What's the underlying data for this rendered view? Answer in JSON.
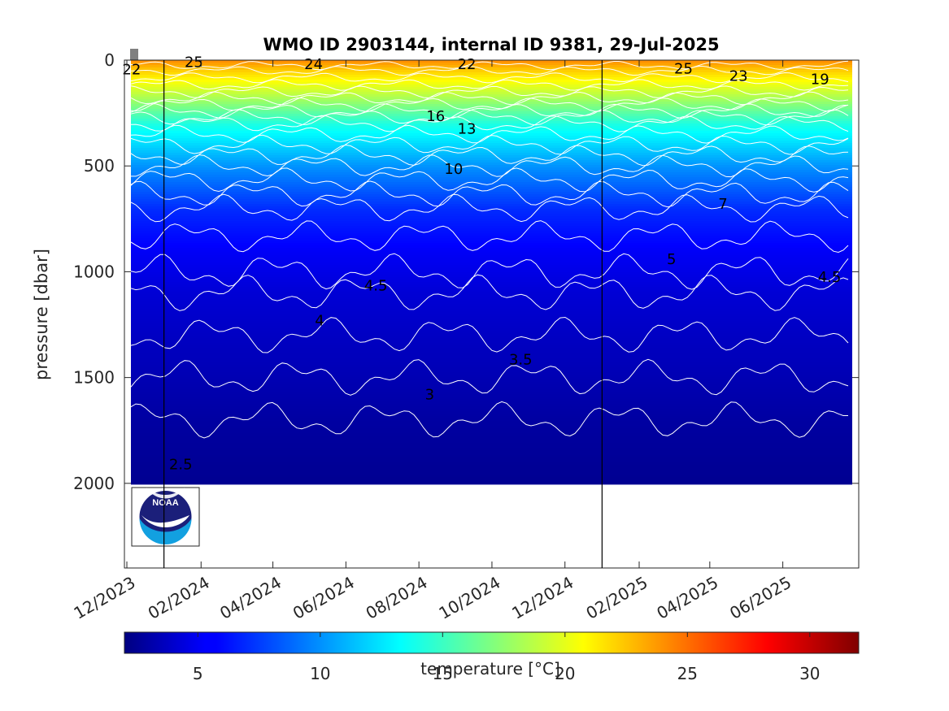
{
  "chart_data": {
    "type": "heatmap",
    "title": "WMO ID 2903144, internal ID 9381, 29-Jul-2025",
    "xlabel": "",
    "ylabel": "pressure [dbar]",
    "x_ticks": [
      "12/2023",
      "02/2024",
      "04/2024",
      "06/2024",
      "08/2024",
      "10/2024",
      "12/2024",
      "02/2025",
      "04/2025",
      "06/2025"
    ],
    "xlim": [
      "2023-12-01",
      "2025-07-29"
    ],
    "y_ticks": [
      0,
      500,
      1000,
      1500,
      2000
    ],
    "ylim": [
      2400,
      0
    ],
    "y_reversed": true,
    "data_max_pressure": 2000,
    "year_boundaries": [
      "2024-01-01",
      "2025-01-01"
    ],
    "colorbar": {
      "label": "temperature [°C]",
      "ticks": [
        5,
        10,
        15,
        20,
        25,
        30
      ],
      "range": [
        2,
        32
      ],
      "colormap": "jet"
    },
    "contour_labels": [
      {
        "text": "22",
        "date": "2023-12-05",
        "pressure": 45
      },
      {
        "text": "25",
        "date": "2024-01-26",
        "pressure": 10
      },
      {
        "text": "24",
        "date": "2024-05-05",
        "pressure": 20
      },
      {
        "text": "22",
        "date": "2024-09-10",
        "pressure": 20
      },
      {
        "text": "25",
        "date": "2025-03-10",
        "pressure": 40
      },
      {
        "text": "23",
        "date": "2025-04-25",
        "pressure": 75
      },
      {
        "text": "19",
        "date": "2025-07-02",
        "pressure": 90
      },
      {
        "text": "16",
        "date": "2024-08-15",
        "pressure": 265
      },
      {
        "text": "13",
        "date": "2024-09-10",
        "pressure": 325
      },
      {
        "text": "10",
        "date": "2024-08-30",
        "pressure": 515
      },
      {
        "text": "7",
        "date": "2025-04-12",
        "pressure": 680
      },
      {
        "text": "5",
        "date": "2025-02-28",
        "pressure": 940
      },
      {
        "text": "4.5",
        "date": "2024-06-26",
        "pressure": 1065
      },
      {
        "text": "4.5",
        "date": "2025-07-10",
        "pressure": 1025
      },
      {
        "text": "4",
        "date": "2024-05-10",
        "pressure": 1230
      },
      {
        "text": "3.5",
        "date": "2024-10-25",
        "pressure": 1415
      },
      {
        "text": "3",
        "date": "2024-08-10",
        "pressure": 1580
      },
      {
        "text": "2.5",
        "date": "2024-01-15",
        "pressure": 1910
      }
    ],
    "profile": [
      {
        "pressure": 0,
        "temperature": 24
      },
      {
        "pressure": 50,
        "temperature": 22
      },
      {
        "pressure": 150,
        "temperature": 19
      },
      {
        "pressure": 300,
        "temperature": 14
      },
      {
        "pressure": 500,
        "temperature": 10
      },
      {
        "pressure": 700,
        "temperature": 7
      },
      {
        "pressure": 900,
        "temperature": 5.5
      },
      {
        "pressure": 1100,
        "temperature": 4.5
      },
      {
        "pressure": 1300,
        "temperature": 4
      },
      {
        "pressure": 1500,
        "temperature": 3.5
      },
      {
        "pressure": 1700,
        "temperature": 3
      },
      {
        "pressure": 2000,
        "temperature": 2.5
      }
    ],
    "contour_levels": [
      25,
      24,
      23,
      22,
      21,
      20,
      19,
      18,
      17,
      16,
      15,
      14,
      13,
      12,
      11,
      10,
      9,
      8,
      7,
      6,
      5,
      4.5,
      4,
      3.5,
      3,
      2.5
    ],
    "grid": false
  },
  "logo": {
    "text": "NOAA",
    "colors": {
      "dark": "#1b1f7a",
      "light": "#12a0e0"
    }
  }
}
